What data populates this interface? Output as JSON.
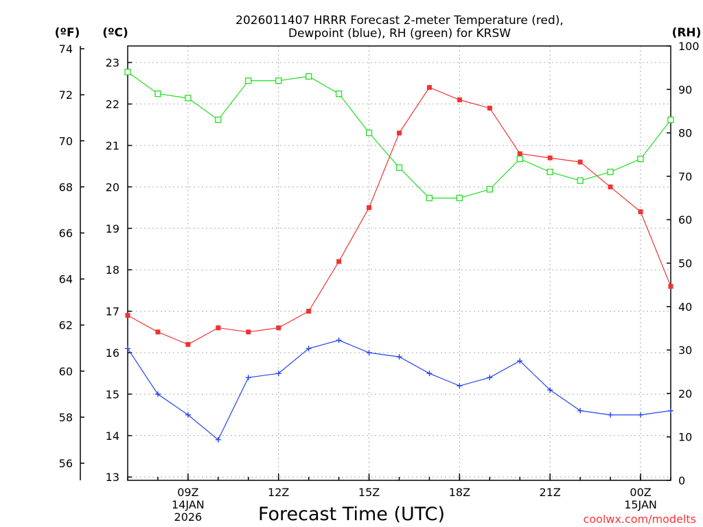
{
  "chart_data": {
    "type": "line",
    "title": [
      "2026011407 HRRR Forecast 2-meter Temperature (red),",
      "Dewpoint (blue), RH (green) for KRSW"
    ],
    "xlabel": "Forecast Time (UTC)",
    "credit": "coolwx.com/modelts",
    "units": {
      "fahrenheit": "(ºF)",
      "celsius": "(ºC)",
      "rh": "(RH)"
    },
    "x": [
      "07Z",
      "08Z",
      "09Z",
      "10Z",
      "11Z",
      "12Z",
      "13Z",
      "14Z",
      "15Z",
      "16Z",
      "17Z",
      "18Z",
      "19Z",
      "20Z",
      "21Z",
      "22Z",
      "23Z",
      "00Z",
      "01Z"
    ],
    "x_ticks": [
      {
        "index": 2,
        "label": "09Z",
        "date": [
          "14JAN",
          "2026"
        ]
      },
      {
        "index": 5,
        "label": "12Z",
        "date": []
      },
      {
        "index": 8,
        "label": "15Z",
        "date": []
      },
      {
        "index": 11,
        "label": "18Z",
        "date": []
      },
      {
        "index": 14,
        "label": "21Z",
        "date": []
      },
      {
        "index": 17,
        "label": "00Z",
        "date": [
          "15JAN"
        ]
      }
    ],
    "celsius_axis": {
      "range": [
        12.92,
        23.4
      ],
      "ticks": [
        13,
        14,
        15,
        16,
        17,
        18,
        19,
        20,
        21,
        22,
        23
      ]
    },
    "fahrenheit_axis": {
      "ticks": [
        56,
        58,
        60,
        62,
        64,
        66,
        68,
        70,
        72,
        74
      ]
    },
    "rh_axis": {
      "range": [
        0,
        100
      ],
      "ticks": [
        0,
        10,
        20,
        30,
        40,
        50,
        60,
        70,
        80,
        90,
        100
      ]
    },
    "grid": true,
    "series": [
      {
        "name": "Temperature",
        "unit": "C",
        "color": "#ee3333",
        "marker": "filled-square",
        "values": [
          16.9,
          16.5,
          16.2,
          16.6,
          16.5,
          16.6,
          17.0,
          18.2,
          19.5,
          21.3,
          22.4,
          22.1,
          21.9,
          20.8,
          20.7,
          20.6,
          20.0,
          19.4,
          17.6
        ]
      },
      {
        "name": "Dewpoint",
        "unit": "C",
        "color": "#2244ee",
        "marker": "plus",
        "values": [
          16.1,
          15.0,
          14.5,
          13.9,
          15.4,
          15.5,
          16.1,
          16.3,
          16.0,
          15.9,
          15.5,
          15.2,
          15.4,
          15.8,
          15.1,
          14.6,
          14.5,
          14.5,
          14.6
        ]
      },
      {
        "name": "RH",
        "unit": "%",
        "color": "#22dd22",
        "marker": "open-square",
        "values": [
          94,
          89,
          88,
          83,
          92,
          92,
          93,
          89,
          80,
          72,
          65,
          65,
          67,
          74,
          71,
          69,
          71,
          74,
          83
        ]
      }
    ]
  }
}
